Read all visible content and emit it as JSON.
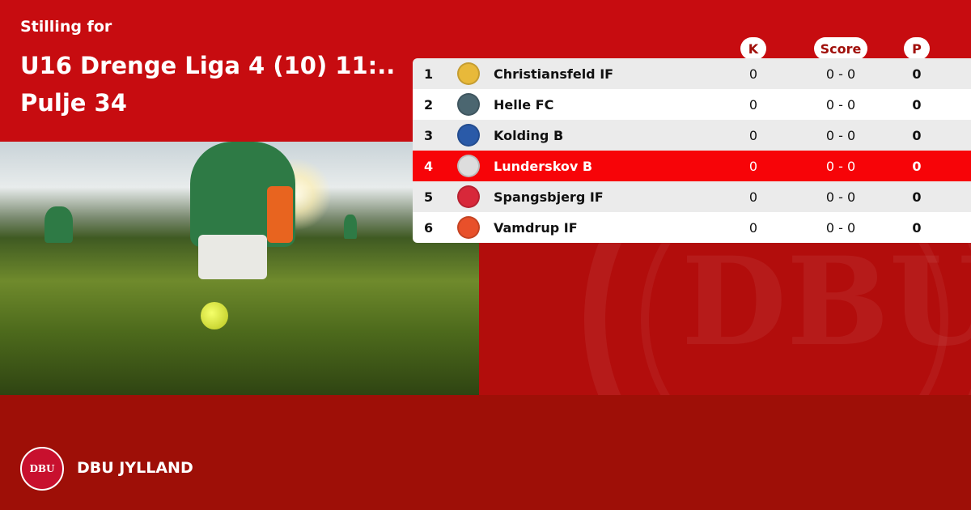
{
  "header": {
    "subtitle": "Stilling for",
    "title": "U16 Drenge Liga 4 (10) 11:..",
    "pool": "Pulje 34"
  },
  "columns": {
    "k": "K",
    "score": "Score",
    "p": "P"
  },
  "rows": [
    {
      "rank": "1",
      "team": "Christiansfeld IF",
      "k": "0",
      "score": "0 - 0",
      "p": "0",
      "logo_color": "#e8b93a"
    },
    {
      "rank": "2",
      "team": "Helle FC",
      "k": "0",
      "score": "0 - 0",
      "p": "0",
      "logo_color": "#4b6670"
    },
    {
      "rank": "3",
      "team": "Kolding B",
      "k": "0",
      "score": "0 - 0",
      "p": "0",
      "logo_color": "#2a5aa8"
    },
    {
      "rank": "4",
      "team": "Lunderskov B",
      "k": "0",
      "score": "0 - 0",
      "p": "0",
      "logo_color": "#dddddd",
      "highlighted": true
    },
    {
      "rank": "5",
      "team": "Spangsbjerg IF",
      "k": "0",
      "score": "0 - 0",
      "p": "0",
      "logo_color": "#d8283a"
    },
    {
      "rank": "6",
      "team": "Vamdrup IF",
      "k": "0",
      "score": "0 - 0",
      "p": "0",
      "logo_color": "#e8502a"
    }
  ],
  "footer": {
    "brand": "DBU JYLLAND",
    "logo_text": "DBU"
  },
  "colors": {
    "primary": "#c70c10",
    "highlight": "#f70408",
    "footer": "#9e0f07"
  }
}
